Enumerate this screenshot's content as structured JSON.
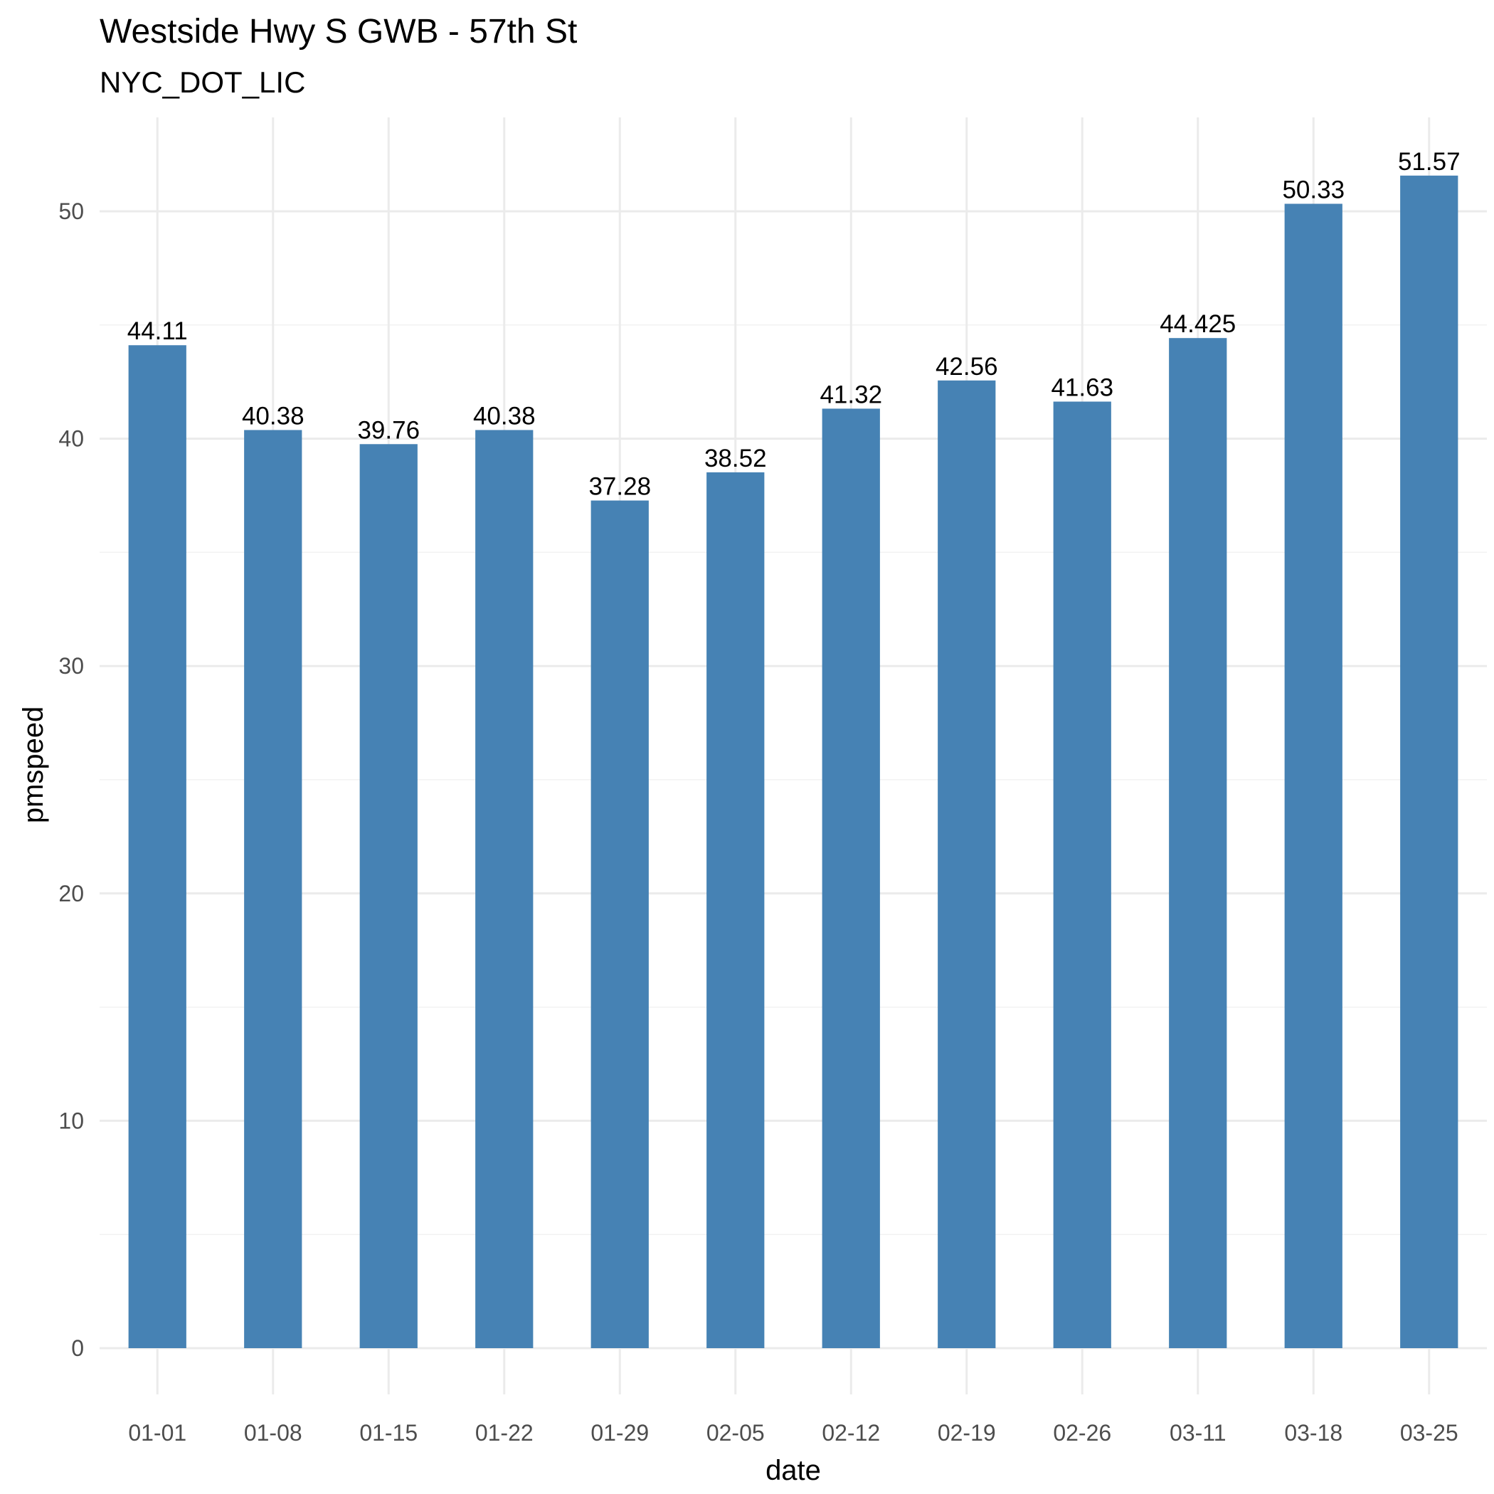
{
  "chart_data": {
    "type": "bar",
    "title": "Westside Hwy S GWB - 57th St",
    "subtitle": "NYC_DOT_LIC",
    "xlabel": "date",
    "ylabel": "pmspeed",
    "categories": [
      "01-01",
      "01-08",
      "01-15",
      "01-22",
      "01-29",
      "02-05",
      "02-12",
      "02-19",
      "02-26",
      "03-11",
      "03-18",
      "03-25"
    ],
    "values": [
      44.11,
      40.38,
      39.76,
      40.38,
      37.28,
      38.52,
      41.32,
      42.56,
      41.63,
      44.425,
      50.33,
      51.57
    ],
    "data_labels": [
      "44.11",
      "40.38",
      "39.76",
      "40.38",
      "37.28",
      "38.52",
      "41.32",
      "42.56",
      "41.63",
      "44.425",
      "50.33",
      "51.57"
    ],
    "ylim": [
      0,
      54
    ],
    "yticks": [
      0,
      10,
      20,
      30,
      40,
      50
    ],
    "ytick_labels": [
      "0",
      "10",
      "20",
      "30",
      "40",
      "50"
    ],
    "grid": true,
    "legend": "none",
    "bar_color": "#4682B4"
  }
}
